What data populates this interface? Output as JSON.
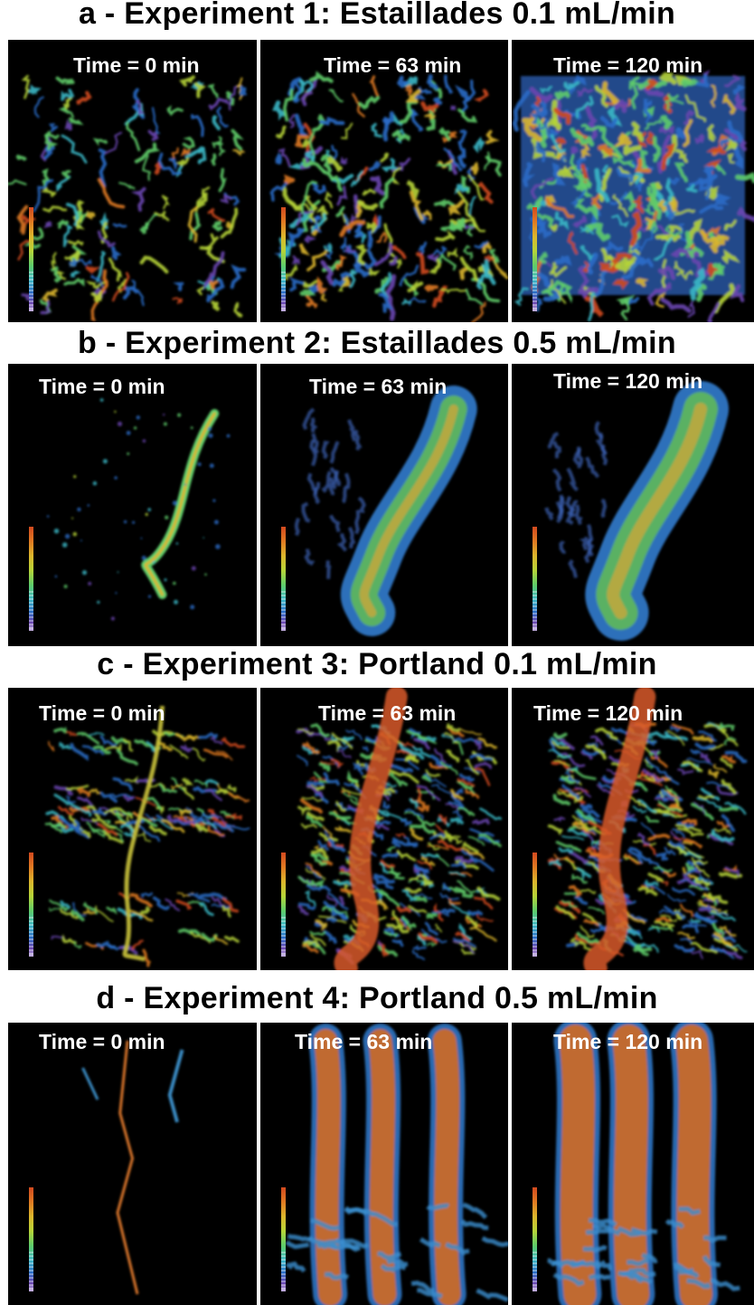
{
  "rows": [
    {
      "title": "a - Experiment 1: Estaillades 0.1 mL/min",
      "panels": [
        {
          "time_label": "Time = 0 min"
        },
        {
          "time_label": "Time = 63 min"
        },
        {
          "time_label": "Time = 120 min"
        }
      ]
    },
    {
      "title": "b - Experiment 2: Estaillades 0.5 mL/min",
      "panels": [
        {
          "time_label": "Time = 0 min"
        },
        {
          "time_label": "Time = 63 min"
        },
        {
          "time_label": "Time = 120 min"
        }
      ]
    },
    {
      "title": "c - Experiment 3: Portland 0.1 mL/min",
      "panels": [
        {
          "time_label": "Time = 0 min"
        },
        {
          "time_label": "Time = 63 min"
        },
        {
          "time_label": "Time = 120 min"
        }
      ]
    },
    {
      "title": "d - Experiment 4: Portland 0.5 mL/min",
      "panels": [
        {
          "time_label": "Time = 0 min"
        },
        {
          "time_label": "Time = 63 min"
        },
        {
          "time_label": "Time = 120 min"
        }
      ]
    }
  ],
  "colors": {
    "background": "#000000",
    "label": "#ffffff",
    "title": "#000000",
    "colormap": [
      "#d24a1f",
      "#e07a22",
      "#dcb62c",
      "#b6d438",
      "#5fcd6a",
      "#3bb8c6",
      "#2a6cc6",
      "#6a45b0",
      "#c9b7e6"
    ]
  }
}
